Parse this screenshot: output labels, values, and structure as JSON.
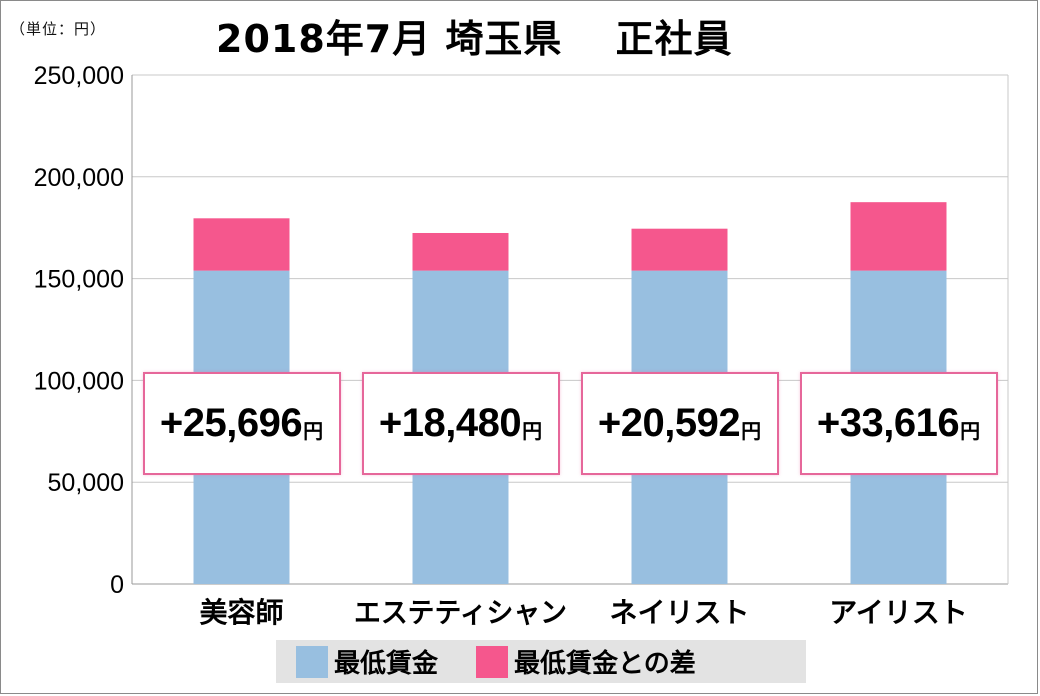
{
  "unit_label": "（単位：円）",
  "title": "2018年7月 埼玉県　 正社員",
  "colors": {
    "min_wage": "#98bfe0",
    "diff": "#f5578d",
    "callout_border": "#e6679a",
    "legend_bg": "#e3e3e3",
    "grid": "#c8c8c8"
  },
  "chart_data": {
    "type": "bar",
    "stacked": true,
    "categories": [
      "美容師",
      "エステティシャン",
      "ネイリスト",
      "アイリスト"
    ],
    "series": [
      {
        "name": "最低賃金",
        "values": [
          153920,
          153920,
          153920,
          153920
        ]
      },
      {
        "name": "最低賃金との差",
        "values": [
          25696,
          18480,
          20592,
          33616
        ]
      }
    ],
    "ylim": [
      0,
      250000
    ],
    "yticks": [
      "0",
      "50,000",
      "100,000",
      "150,000",
      "200,000",
      "250,000"
    ],
    "ytick_values": [
      0,
      50000,
      100000,
      150000,
      200000,
      250000
    ],
    "grid": true,
    "legend_position": "bottom",
    "annotations": [
      {
        "number": "+25,696",
        "unit": "円"
      },
      {
        "number": "+18,480",
        "unit": "円"
      },
      {
        "number": "+20,592",
        "unit": "円"
      },
      {
        "number": "+33,616",
        "unit": "円"
      }
    ]
  },
  "legend": [
    {
      "label": "最低賃金",
      "color": "#98bfe0"
    },
    {
      "label": "最低賃金との差",
      "color": "#f5578d"
    }
  ]
}
